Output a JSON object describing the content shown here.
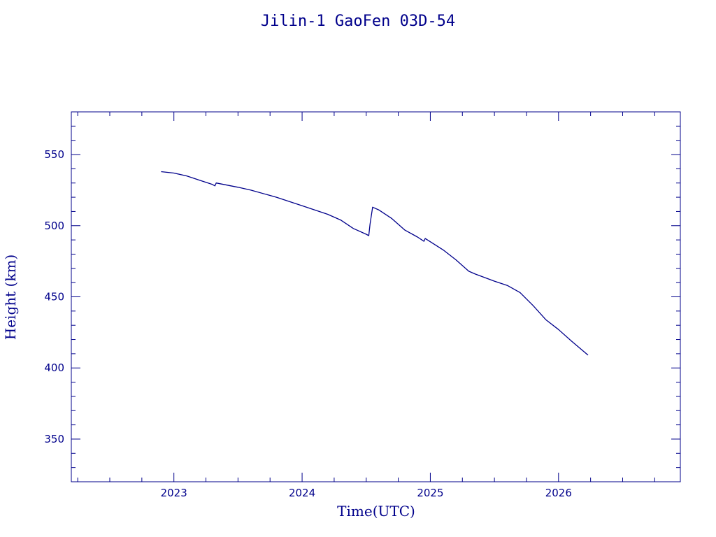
{
  "chart_data": {
    "type": "line",
    "title": "Jilin-1 GaoFen 03D-54",
    "xlabel": "Time(UTC)",
    "ylabel": "Height (km)",
    "xlim": [
      2022.2,
      2026.95
    ],
    "ylim": [
      320,
      580
    ],
    "x_ticks": [
      2023,
      2024,
      2025,
      2026
    ],
    "y_ticks": [
      350,
      400,
      450,
      500,
      550
    ],
    "grid": false,
    "colors": {
      "line": "#00008b",
      "axes": "#00008b",
      "text": "#00008b"
    },
    "series": [
      {
        "x": [
          2022.9,
          2023.0,
          2023.1,
          2023.2,
          2023.3,
          2023.32,
          2023.33,
          2023.5,
          2023.6,
          2023.8,
          2024.0,
          2024.2,
          2024.3,
          2024.4,
          2024.5,
          2024.52,
          2024.53,
          2024.55,
          2024.6,
          2024.7,
          2024.8,
          2024.9,
          2024.95,
          2024.96,
          2025.1,
          2025.2,
          2025.3,
          2025.35,
          2025.5,
          2025.6,
          2025.7,
          2025.8,
          2025.9,
          2026.0,
          2026.1,
          2026.23
        ],
        "y": [
          538,
          537,
          535,
          532,
          529,
          528,
          530,
          527,
          525,
          520,
          514,
          508,
          504,
          498,
          494,
          493,
          501,
          513,
          511,
          505,
          497,
          492,
          489,
          491,
          483,
          476,
          468,
          466,
          461,
          458,
          453,
          444,
          434,
          427,
          419,
          409
        ]
      }
    ]
  }
}
